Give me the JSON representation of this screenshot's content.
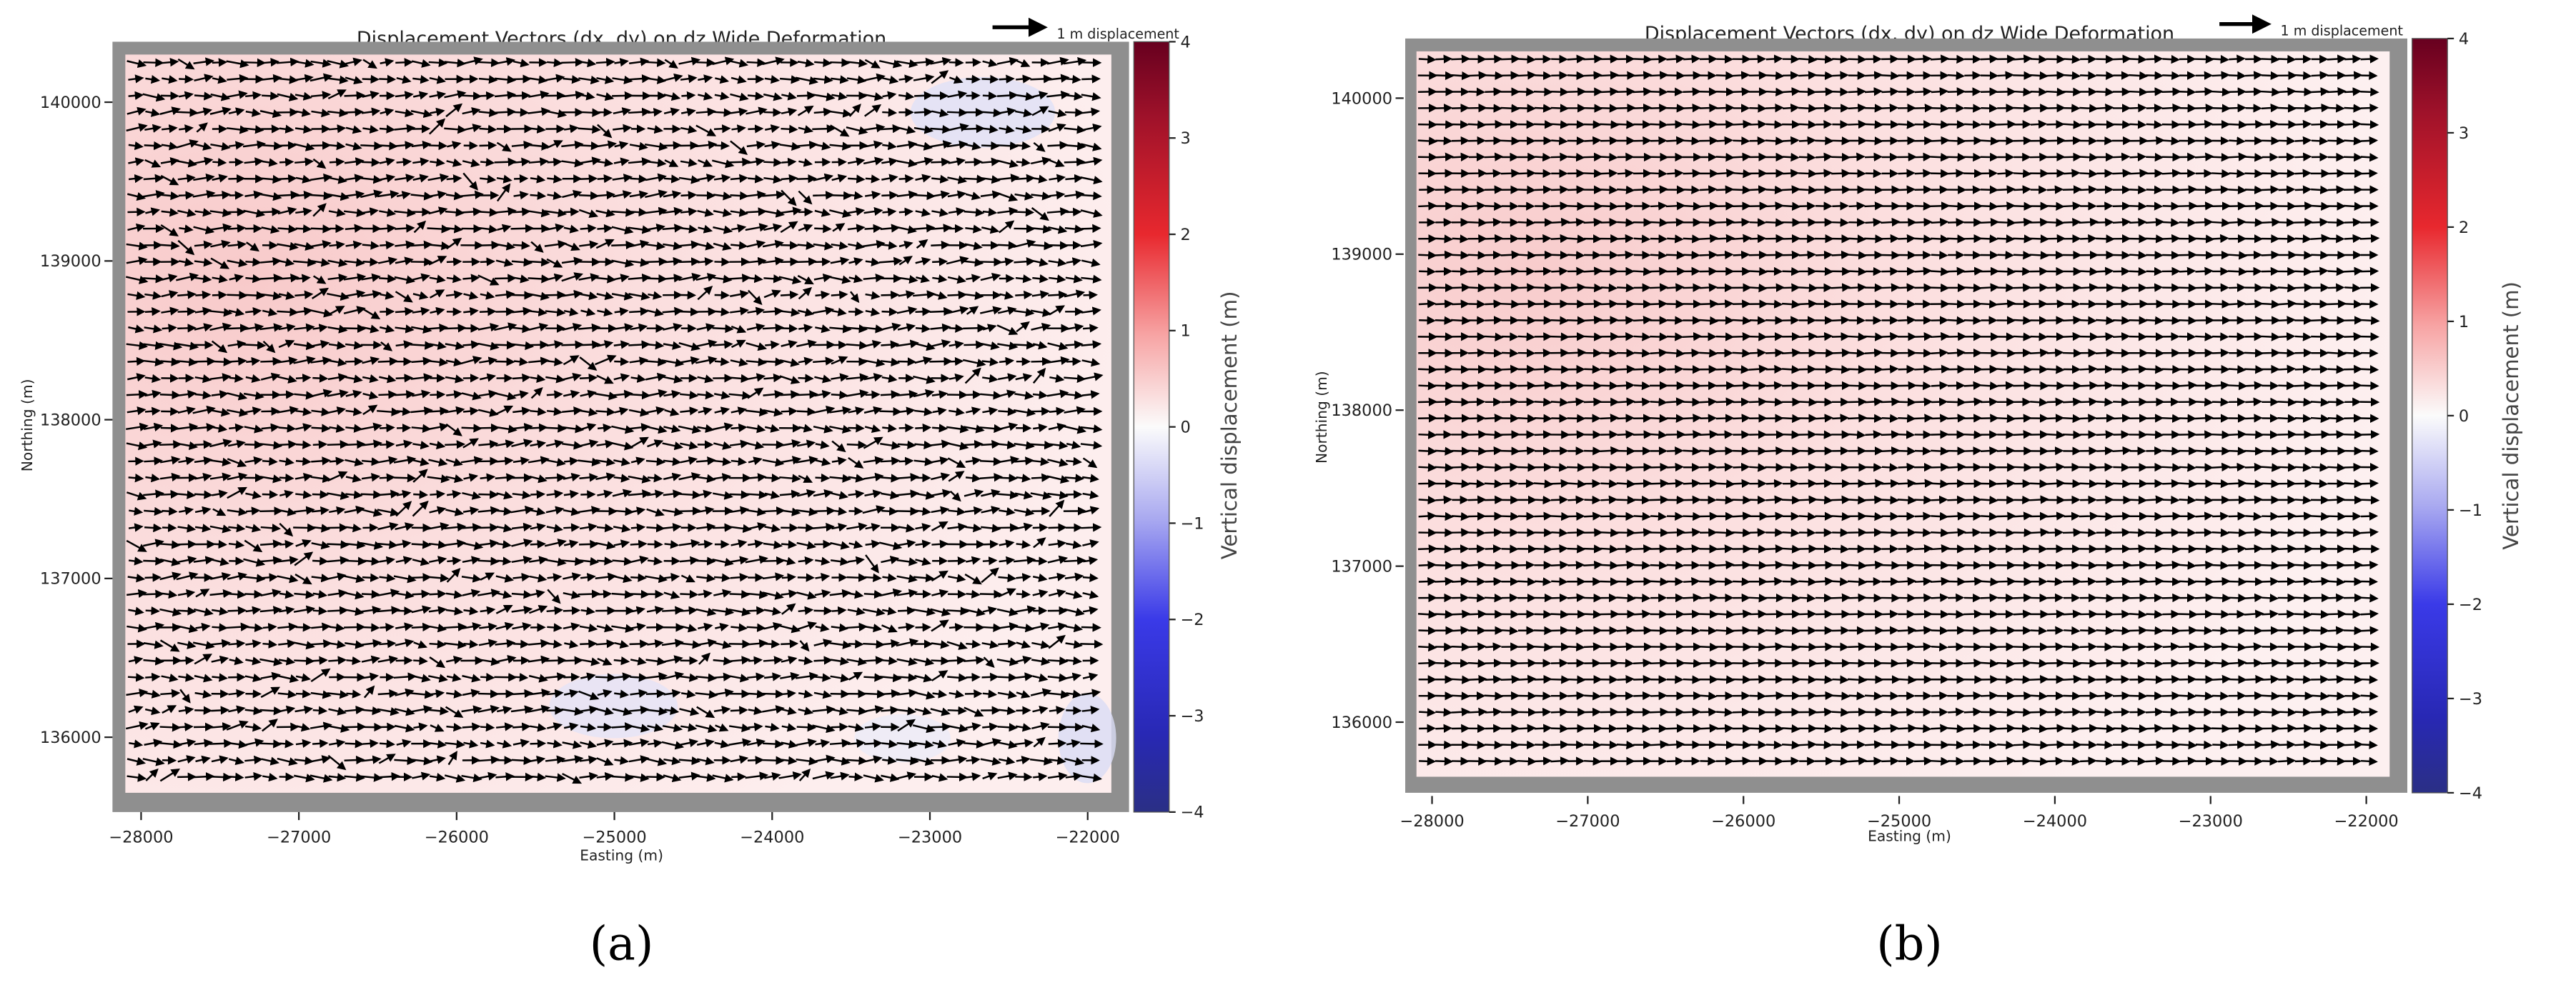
{
  "chart_data": [
    {
      "panel_label": "(a)",
      "type": "quiver",
      "title": "Displacement Vectors (dx, dy) on dz Wide Deformation",
      "quiver_key_label": "1 m displacement",
      "xlabel": "Easting (m)",
      "ylabel": "Northing (m)",
      "xlim": [
        -28100,
        -21850
      ],
      "ylim": [
        135650,
        140300
      ],
      "x_ticks": [
        -28000,
        -27000,
        -26000,
        -25000,
        -24000,
        -23000,
        -22000
      ],
      "x_tick_labels": [
        "−28000",
        "−27000",
        "−26000",
        "−25000",
        "−24000",
        "−23000",
        "−22000"
      ],
      "y_ticks": [
        136000,
        137000,
        138000,
        139000,
        140000
      ],
      "y_tick_labels": [
        "136000",
        "137000",
        "138000",
        "139000",
        "140000"
      ],
      "colorbar": {
        "label": "Vertical displacement (m)",
        "range": [
          -4,
          4
        ],
        "colormap": "seismic",
        "ticks": [
          4,
          3,
          2,
          1,
          0,
          -1,
          -2,
          -3,
          -4
        ],
        "tick_labels": [
          "4",
          "3",
          "2",
          "1",
          "0",
          "−1",
          "−2",
          "−3",
          "−4"
        ]
      },
      "vectors": {
        "x_range": [
          -28050,
          -22000
        ],
        "y_range": [
          135750,
          140250
        ],
        "columns": 58,
        "rows": 44,
        "dominant_direction": "east",
        "noise": "high"
      },
      "background": "light pink (~0.3–0.8 m uplift) with faint blue patches",
      "colors": {
        "frame": "#8f8f8f",
        "arrow": "#000000",
        "colorbar_top": "#67001f",
        "colorbar_bottom": "#2a2f85"
      }
    },
    {
      "panel_label": "(b)",
      "type": "quiver",
      "title": "Displacement Vectors (dx, dy) on dz Wide Deformation",
      "quiver_key_label": "1 m displacement",
      "xlabel": "Easting (m)",
      "ylabel": "Northing (m)",
      "xlim": [
        -28100,
        -21850
      ],
      "ylim": [
        135650,
        140300
      ],
      "x_ticks": [
        -28000,
        -27000,
        -26000,
        -25000,
        -24000,
        -23000,
        -22000
      ],
      "x_tick_labels": [
        "−28000",
        "−27000",
        "−26000",
        "−25000",
        "−24000",
        "−23000",
        "−22000"
      ],
      "y_ticks": [
        136000,
        137000,
        138000,
        139000,
        140000
      ],
      "y_tick_labels": [
        "136000",
        "137000",
        "138000",
        "139000",
        "140000"
      ],
      "colorbar": {
        "label": "Vertical displacement (m)",
        "range": [
          -4,
          4
        ],
        "colormap": "seismic",
        "ticks": [
          4,
          3,
          2,
          1,
          0,
          -1,
          -2,
          -3,
          -4
        ],
        "tick_labels": [
          "4",
          "3",
          "2",
          "1",
          "0",
          "−1",
          "−2",
          "−3",
          "−4"
        ]
      },
      "vectors": {
        "x_range": [
          -28050,
          -22000
        ],
        "y_range": [
          135750,
          140250
        ],
        "columns": 58,
        "rows": 44,
        "dominant_direction": "east",
        "noise": "low"
      },
      "background": "light pink (~0.3–0.8 m uplift), smoother field",
      "colors": {
        "frame": "#8f8f8f",
        "arrow": "#000000",
        "colorbar_top": "#67001f",
        "colorbar_bottom": "#2a2f85"
      }
    }
  ]
}
